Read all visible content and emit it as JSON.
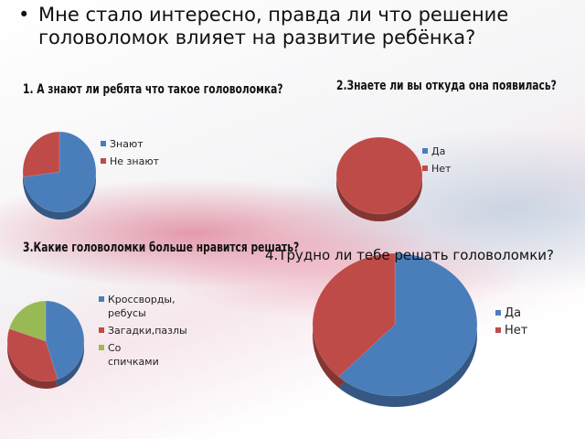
{
  "slide_title": "Мне стало интересно, правда ли что решение головоломок  влияет на развитие ребёнка?",
  "chart_data": [
    {
      "type": "pie",
      "title": "1. А знают ли ребята что такое головоломка?",
      "categories": [
        "Знают",
        "Не знают"
      ],
      "values": [
        73,
        27
      ],
      "colors": [
        "#4a7ebb",
        "#be4b48"
      ]
    },
    {
      "type": "pie",
      "title": "2.Знаете ли вы откуда она появилась?",
      "categories": [
        "Да",
        "Нет"
      ],
      "values": [
        0,
        100
      ],
      "colors": [
        "#4a7ebb",
        "#be4b48"
      ]
    },
    {
      "type": "pie",
      "title": "3.Какие головоломки больше нравится решать?",
      "categories": [
        "Кроссворды, ребусы",
        "Загадки,пазлы",
        "Со спичками"
      ],
      "values": [
        45,
        35,
        20
      ],
      "colors": [
        "#4a7ebb",
        "#be4b48",
        "#98b954"
      ]
    },
    {
      "type": "pie",
      "title": "4.Трудно ли тебе решать головоломки?",
      "categories": [
        "Да",
        "Нет"
      ],
      "values": [
        62,
        38
      ],
      "colors": [
        "#4a7ebb",
        "#be4b48"
      ]
    }
  ]
}
